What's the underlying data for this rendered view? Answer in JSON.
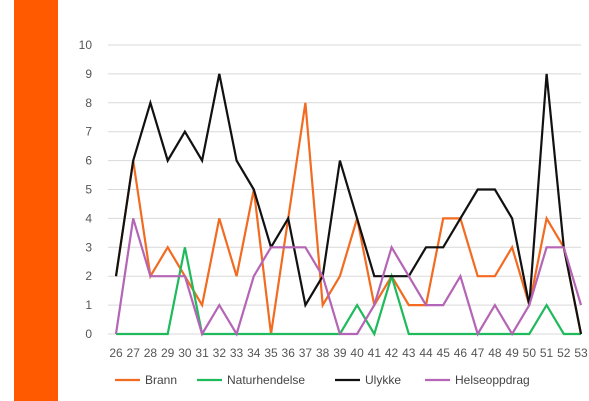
{
  "accent_color": "#ff5a00",
  "chart_data": {
    "type": "line",
    "categories": [
      "26",
      "27",
      "28",
      "29",
      "30",
      "31",
      "32",
      "33",
      "34",
      "35",
      "36",
      "37",
      "38",
      "39",
      "40",
      "41",
      "42",
      "43",
      "44",
      "45",
      "46",
      "47",
      "48",
      "49",
      "50",
      "51",
      "52",
      "53"
    ],
    "ylim": [
      0,
      10
    ],
    "yticks": [
      0,
      1,
      2,
      3,
      4,
      5,
      6,
      7,
      8,
      9,
      10
    ],
    "grid": true,
    "legend_position": "bottom",
    "series": [
      {
        "name": "Brann",
        "color": "#f26b21",
        "values": [
          2,
          6,
          2,
          3,
          2,
          1,
          4,
          2,
          5,
          0,
          4,
          8,
          1,
          2,
          4,
          1,
          2,
          1,
          1,
          4,
          4,
          2,
          2,
          3,
          1,
          4,
          3,
          0
        ]
      },
      {
        "name": "Naturhendelse",
        "color": "#1fba5c",
        "values": [
          0,
          0,
          0,
          0,
          3,
          0,
          0,
          0,
          0,
          0,
          0,
          0,
          0,
          0,
          1,
          0,
          2,
          0,
          0,
          0,
          0,
          0,
          0,
          0,
          0,
          1,
          0,
          0
        ]
      },
      {
        "name": "Ulykke",
        "color": "#111111",
        "values": [
          2,
          6,
          8,
          6,
          7,
          6,
          9,
          6,
          5,
          3,
          4,
          1,
          2,
          6,
          4,
          2,
          2,
          2,
          3,
          3,
          4,
          5,
          5,
          4,
          1,
          9,
          3,
          0
        ]
      },
      {
        "name": "Helseoppdrag",
        "color": "#b565b5",
        "values": [
          0,
          4,
          2,
          2,
          2,
          0,
          1,
          0,
          2,
          3,
          3,
          3,
          2,
          0,
          0,
          1,
          3,
          2,
          1,
          1,
          2,
          0,
          1,
          0,
          1,
          3,
          3,
          1
        ]
      }
    ]
  }
}
